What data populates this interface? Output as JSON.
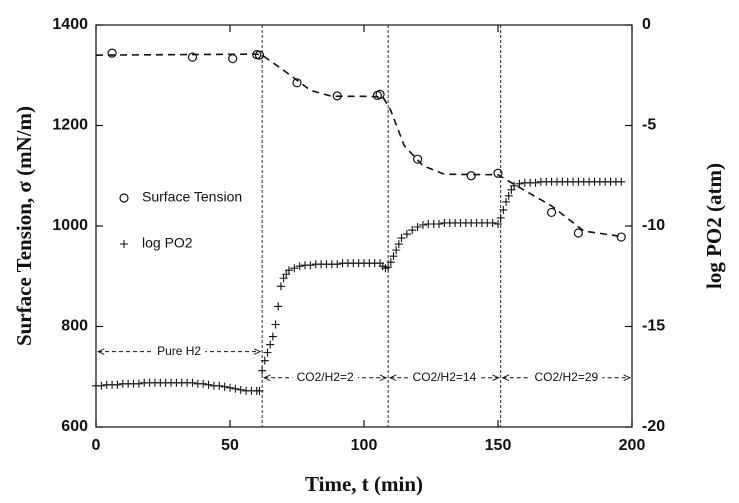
{
  "chart_data": {
    "type": "scatter",
    "xlabel": "Time, t (min)",
    "ylabel": "Surface Tension, σ (mN/m)",
    "y2label": "log PO2 (atm)",
    "xlim": [
      0,
      200
    ],
    "xticks": [
      0,
      50,
      100,
      150,
      200
    ],
    "ylim": [
      600,
      1400
    ],
    "yticks": [
      600,
      800,
      1000,
      1200,
      1400
    ],
    "y2lim": [
      -20,
      0
    ],
    "y2ticks": [
      -20,
      -15,
      -10,
      -5,
      0
    ],
    "color": "#111111",
    "series": [
      {
        "name": "Surface Tension",
        "marker": "circle",
        "x": [
          6,
          36,
          51,
          60,
          61,
          75,
          90,
          105,
          106,
          120,
          140,
          150,
          170,
          180,
          196
        ],
        "values": [
          1344,
          1336,
          1333,
          1341,
          1340,
          1285,
          1259,
          1260,
          1262,
          1133,
          1100,
          1105,
          1027,
          986,
          978
        ]
      },
      {
        "name": "log PO2",
        "marker": "plus",
        "axis": "y2",
        "x": [
          0,
          2,
          4,
          6,
          8,
          10,
          12,
          14,
          16,
          18,
          20,
          22,
          24,
          26,
          28,
          30,
          32,
          34,
          36,
          38,
          40,
          42,
          44,
          46,
          48,
          50,
          52,
          54,
          56,
          58,
          60,
          61,
          62,
          63,
          64,
          65,
          66,
          67,
          68,
          69,
          70,
          71,
          72,
          74,
          76,
          78,
          80,
          82,
          84,
          86,
          88,
          90,
          92,
          94,
          96,
          98,
          100,
          102,
          104,
          106,
          107,
          108,
          109,
          110,
          111,
          112,
          113,
          114,
          116,
          118,
          120,
          122,
          124,
          126,
          128,
          130,
          132,
          134,
          136,
          138,
          140,
          142,
          144,
          146,
          148,
          150,
          151,
          152,
          153,
          154,
          155,
          156,
          158,
          160,
          162,
          164,
          166,
          168,
          170,
          172,
          174,
          176,
          178,
          180,
          182,
          184,
          186,
          188,
          190,
          192,
          194,
          196
        ],
        "values": [
          -17.95,
          -17.95,
          -17.9,
          -17.9,
          -17.9,
          -17.85,
          -17.85,
          -17.85,
          -17.85,
          -17.8,
          -17.8,
          -17.8,
          -17.8,
          -17.8,
          -17.8,
          -17.8,
          -17.8,
          -17.8,
          -17.8,
          -17.85,
          -17.85,
          -17.9,
          -17.95,
          -17.95,
          -18.0,
          -18.05,
          -18.1,
          -18.15,
          -18.2,
          -18.2,
          -18.2,
          -18.2,
          -17.2,
          -16.7,
          -16.3,
          -15.9,
          -15.5,
          -14.9,
          -14.0,
          -13.0,
          -12.6,
          -12.4,
          -12.2,
          -12.1,
          -12.0,
          -11.95,
          -11.95,
          -11.9,
          -11.9,
          -11.9,
          -11.9,
          -11.9,
          -11.85,
          -11.85,
          -11.85,
          -11.85,
          -11.85,
          -11.85,
          -11.85,
          -11.85,
          -12.0,
          -12.1,
          -12.05,
          -11.8,
          -11.5,
          -11.2,
          -10.9,
          -10.6,
          -10.4,
          -10.2,
          -10.05,
          -9.95,
          -9.9,
          -9.9,
          -9.9,
          -9.85,
          -9.85,
          -9.85,
          -9.85,
          -9.85,
          -9.85,
          -9.85,
          -9.85,
          -9.85,
          -9.85,
          -9.9,
          -9.6,
          -9.2,
          -8.8,
          -8.5,
          -8.2,
          -8.0,
          -7.9,
          -7.85,
          -7.85,
          -7.85,
          -7.8,
          -7.8,
          -7.8,
          -7.8,
          -7.8,
          -7.8,
          -7.8,
          -7.8,
          -7.8,
          -7.8,
          -7.8,
          -7.8,
          -7.8,
          -7.8,
          -7.8,
          -7.8
        ]
      }
    ],
    "fit": {
      "x": [
        0,
        60,
        62,
        70,
        80,
        88,
        100,
        107,
        110,
        115,
        122,
        130,
        150,
        157,
        170,
        182,
        195
      ],
      "values": [
        1340,
        1342,
        1340,
        1310,
        1270,
        1258,
        1258,
        1257,
        1230,
        1160,
        1120,
        1103,
        1102,
        1080,
        1040,
        990,
        980
      ]
    },
    "vlines": [
      62,
      109,
      151
    ],
    "annotations": [
      {
        "text": "Pure H2",
        "x": [
          0,
          62
        ],
        "y": 750
      },
      {
        "text": "CO2/H2=2",
        "x": [
          62,
          109
        ],
        "y": 698
      },
      {
        "text": "CO2/H2=14",
        "x": [
          109,
          151
        ],
        "y": 698
      },
      {
        "text": "CO2/H2=29",
        "x": [
          151,
          200
        ],
        "y": 698
      }
    ]
  }
}
